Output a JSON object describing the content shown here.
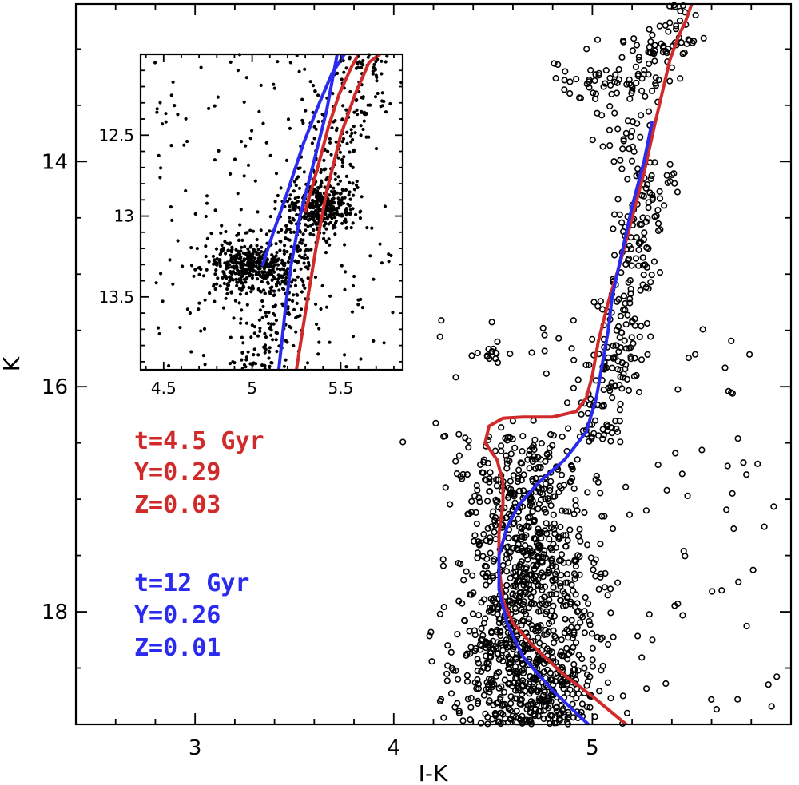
{
  "chart_data": [
    {
      "type": "scatter",
      "name": "main-cmd",
      "title": "",
      "xlabel": "I-K",
      "ylabel": "K",
      "xlim": [
        2.4,
        6.0
      ],
      "ylim": [
        19.0,
        12.6
      ],
      "y_inverted": true,
      "x_ticks": [
        3,
        4,
        5
      ],
      "x_tick_labels": [
        "3",
        "4",
        "5"
      ],
      "y_ticks": [
        14,
        16,
        18
      ],
      "y_tick_labels": [
        "14",
        "16",
        "18"
      ],
      "marker": "open-circle",
      "grid": false,
      "legend": [
        {
          "lines": [
            "t=4.5 Gyr",
            "Y=0.29",
            "Z=0.03"
          ],
          "color": "#d12a2a"
        },
        {
          "lines": [
            "t=12 Gyr",
            "Y=0.26",
            "Z=0.01"
          ],
          "color": "#2b2bf0"
        }
      ],
      "series": [
        {
          "name": "t=4.5 Gyr, Y=0.29, Z=0.03",
          "kind": "isochrone",
          "color": "#d12a2a",
          "x": [
            5.17,
            5.0,
            4.85,
            4.7,
            4.6,
            4.55,
            4.53,
            4.53,
            4.55,
            4.55,
            4.52,
            4.46,
            4.48,
            4.55,
            4.65,
            4.8,
            4.92,
            4.97,
            5.0,
            5.03,
            5.08,
            5.14,
            5.2,
            5.26,
            5.31,
            5.35,
            5.39,
            5.43,
            5.47,
            5.5
          ],
          "y": [
            19.0,
            18.75,
            18.55,
            18.3,
            18.1,
            17.9,
            17.6,
            17.3,
            17.05,
            16.85,
            16.65,
            16.5,
            16.35,
            16.28,
            16.27,
            16.27,
            16.22,
            16.1,
            15.9,
            15.6,
            15.25,
            14.9,
            14.5,
            14.1,
            13.7,
            13.4,
            13.1,
            12.9,
            12.75,
            12.6
          ]
        },
        {
          "name": "t=12 Gyr, Y=0.26, Z=0.01",
          "kind": "isochrone",
          "color": "#2b2bf0",
          "x": [
            4.98,
            4.8,
            4.65,
            4.57,
            4.53,
            4.53,
            4.57,
            4.63,
            4.73,
            4.86,
            4.97,
            5.02,
            5.05,
            5.08,
            5.1,
            5.15,
            5.2,
            5.26,
            5.3
          ],
          "y": [
            19.0,
            18.7,
            18.4,
            18.1,
            17.8,
            17.5,
            17.25,
            17.05,
            16.85,
            16.65,
            16.4,
            16.1,
            15.8,
            15.5,
            15.2,
            14.8,
            14.4,
            14.0,
            13.65
          ]
        }
      ]
    },
    {
      "type": "scatter",
      "name": "inset-cmd",
      "title": "",
      "xlabel": "",
      "ylabel": "",
      "xlim": [
        4.37,
        5.85
      ],
      "ylim": [
        13.95,
        12.0
      ],
      "y_inverted": true,
      "x_ticks": [
        4.5,
        5,
        5.5
      ],
      "x_tick_labels": [
        "4.5",
        "5",
        "5.5"
      ],
      "y_ticks": [
        12.5,
        13,
        13.5
      ],
      "y_tick_labels": [
        "12.5",
        "13",
        "13.5"
      ],
      "marker": "filled-dot",
      "grid": false,
      "series": [
        {
          "name": "t=4.5 Gyr, Y=0.29, Z=0.03",
          "kind": "isochrone-left-branch",
          "color": "#d12a2a",
          "x": [
            5.25,
            5.3,
            5.36,
            5.42,
            5.5,
            5.58,
            5.66,
            5.72
          ],
          "y": [
            13.95,
            13.6,
            13.2,
            12.85,
            12.5,
            12.25,
            12.05,
            12.0
          ]
        },
        {
          "name": "t=4.5 Gyr, Y=0.29, Z=0.03",
          "kind": "isochrone-right-branch",
          "color": "#d12a2a",
          "x": [
            5.3,
            5.37,
            5.43,
            5.49,
            5.56,
            5.6
          ],
          "y": [
            12.97,
            12.7,
            12.45,
            12.25,
            12.08,
            12.0
          ]
        },
        {
          "name": "t=12 Gyr, Y=0.26, Z=0.01",
          "kind": "isochrone-left-branch",
          "color": "#2b2bf0",
          "x": [
            5.15,
            5.17,
            5.19,
            5.22,
            5.27,
            5.34,
            5.42,
            5.48
          ],
          "y": [
            13.95,
            13.75,
            13.55,
            13.3,
            13.0,
            12.7,
            12.35,
            12.0
          ]
        },
        {
          "name": "t=12 Gyr, Y=0.26, Z=0.01",
          "kind": "isochrone-right-branch",
          "color": "#2b2bf0",
          "x": [
            5.06,
            5.12,
            5.2,
            5.29,
            5.38,
            5.45,
            5.52
          ],
          "y": [
            13.3,
            13.1,
            12.85,
            12.55,
            12.3,
            12.12,
            12.0
          ]
        }
      ]
    }
  ]
}
